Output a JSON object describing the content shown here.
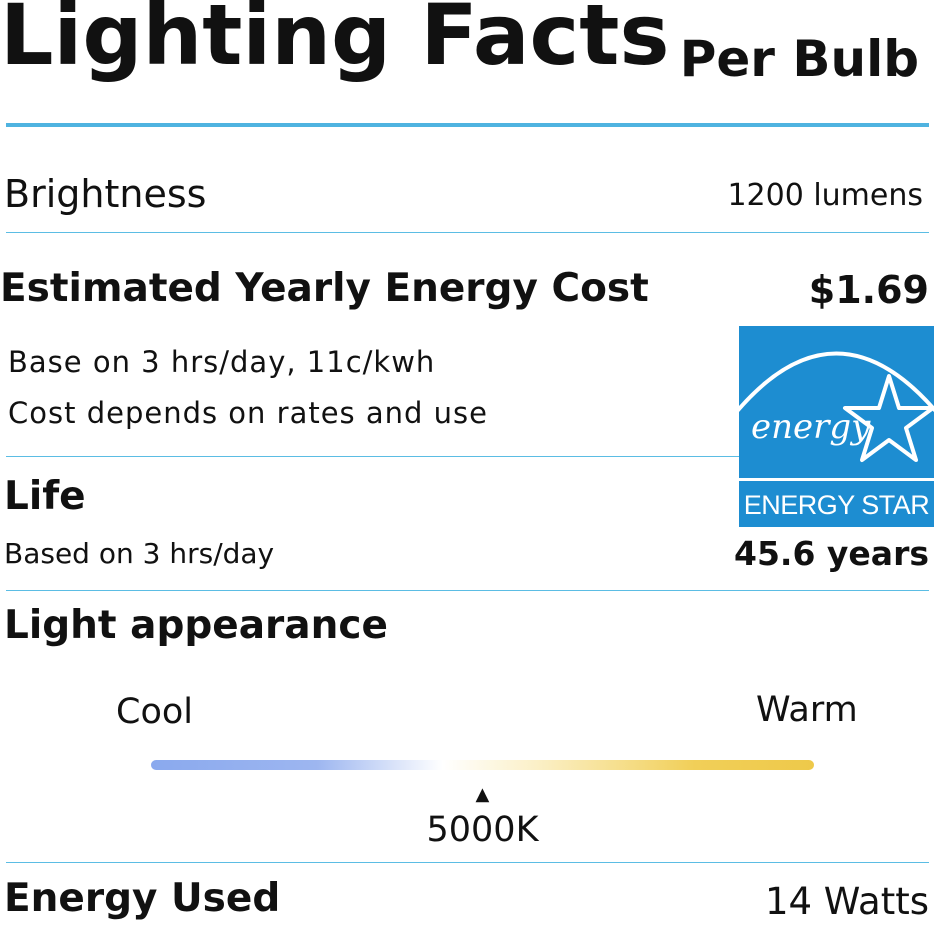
{
  "header": {
    "title": "Lighting Facts",
    "subtitle": "Per Bulb"
  },
  "brightness": {
    "label": "Brightness",
    "value": "1200 lumens"
  },
  "energy_cost": {
    "label": "Estimated Yearly Energy Cost",
    "value": "$1.69",
    "note_line1": "Base on 3 hrs/day, 11c/kwh",
    "note_line2": "Cost depends on rates and use"
  },
  "energy_star": {
    "script_text": "energy",
    "label": "ENERGY STAR",
    "color": "#1d8dd1"
  },
  "life": {
    "label": "Life",
    "note": "Based on 3 hrs/day",
    "value": "45.6 years"
  },
  "light_appearance": {
    "label": "Light appearance",
    "cool_label": "Cool",
    "warm_label": "Warm",
    "value": "5000K",
    "position_fraction": 0.5,
    "marker_icon": "triangle-up-icon"
  },
  "energy_used": {
    "label": "Energy Used",
    "value": "14 Watts"
  },
  "colors": {
    "rule": "#5bbde4",
    "cool": "#8aa9ee",
    "warm": "#eec94a"
  }
}
